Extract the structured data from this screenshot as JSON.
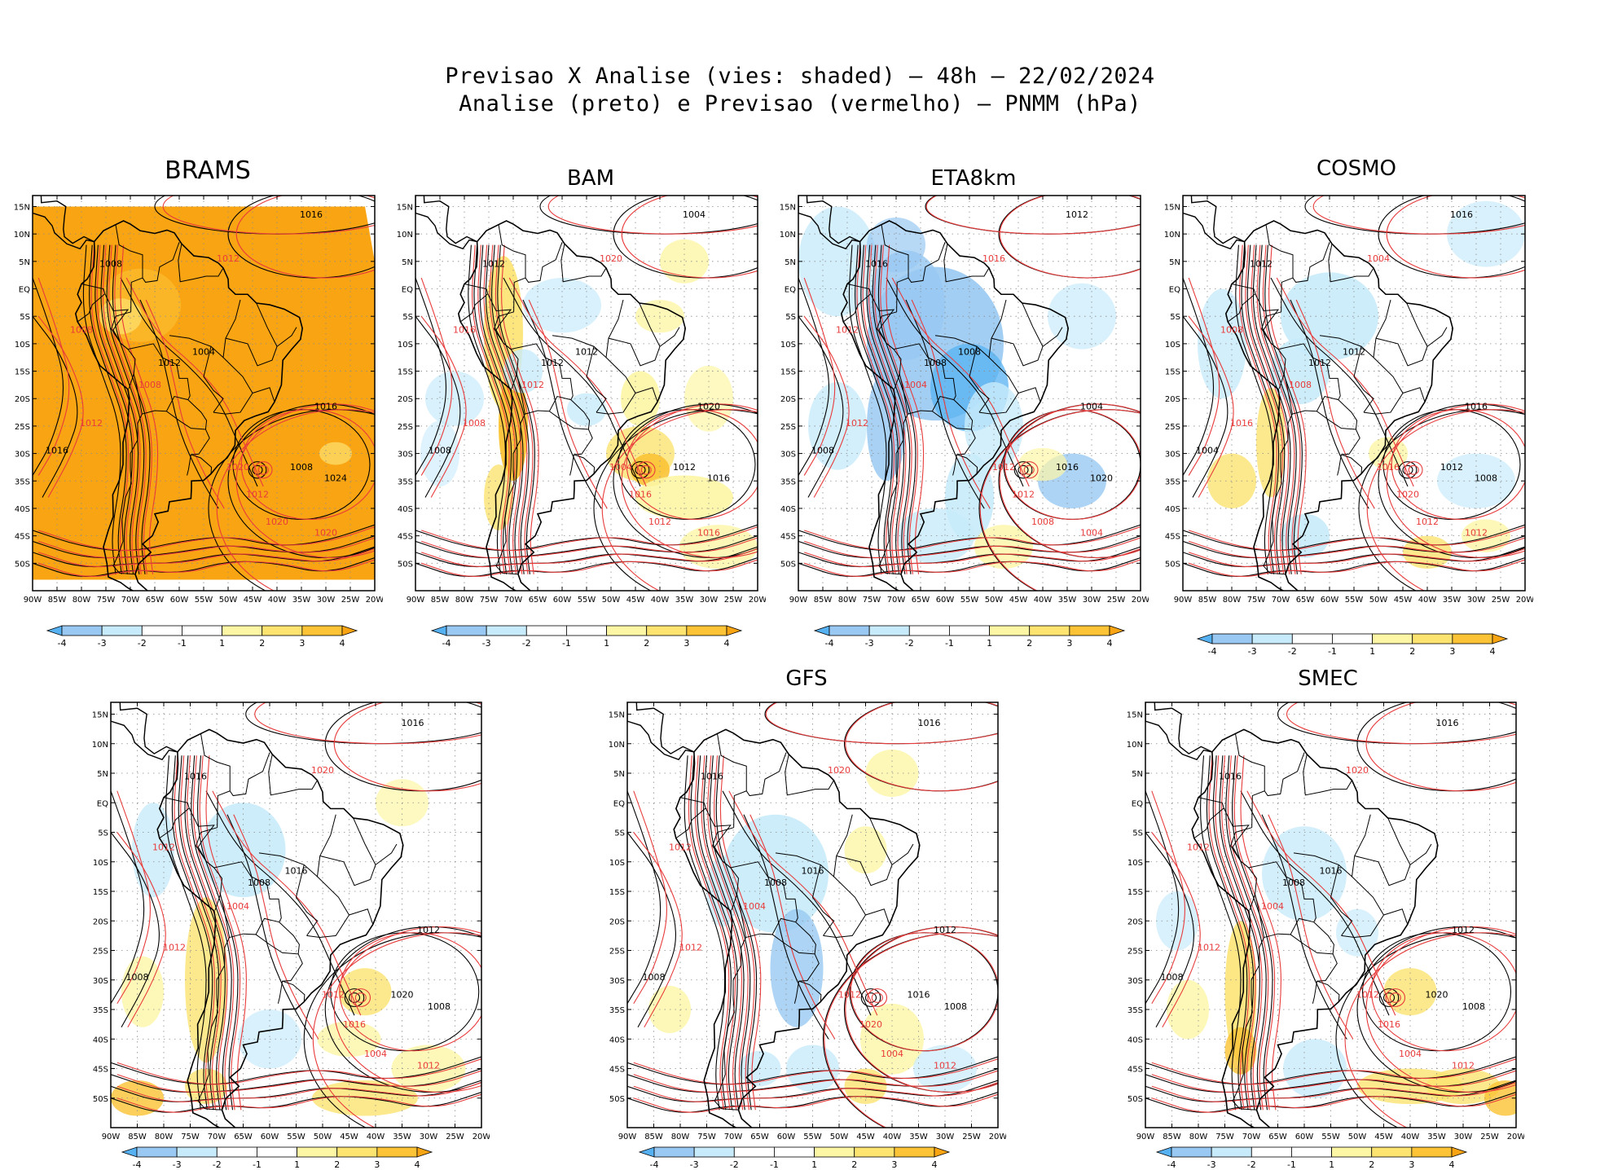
{
  "header": {
    "line1": "Previsao X Analise (vies: shaded) — 48h — 22/02/2024",
    "line2": "Analise (preto) e Previsao (vermelho) — PNMM (hPa)"
  },
  "colors": {
    "neg4": "#56b1f2",
    "neg3": "#99c9f2",
    "neg2": "#c8ebfb",
    "neg1": "#ffffff",
    "pos1": "#fdf6a5",
    "pos2": "#fde370",
    "pos3": "#fbc335",
    "pos4": "#f9a412",
    "analysis": "#000000",
    "forecast": "#e83b3b",
    "grid": "#8c8c8c"
  },
  "lat_labels": [
    "15N",
    "10N",
    "5N",
    "EQ",
    "5S",
    "10S",
    "15S",
    "20S",
    "25S",
    "30S",
    "35S",
    "40S",
    "45S",
    "50S"
  ],
  "lon_labels": [
    "90W",
    "85W",
    "80W",
    "75W",
    "70W",
    "65W",
    "60W",
    "55W",
    "50W",
    "45W",
    "40W",
    "35W",
    "30W",
    "25W",
    "20W"
  ],
  "colorbar_labels": [
    "-4",
    "-3",
    "-2",
    "-1",
    "1",
    "2",
    "3",
    "4"
  ],
  "panels": [
    {
      "id": "brams",
      "title": "BRAMS",
      "bias": "brams",
      "contours": [
        "1008",
        "1008",
        "1012",
        "1012",
        "1004",
        "1008",
        "1016",
        "1020",
        "1008",
        "1012",
        "1016",
        "1020",
        "1024",
        "1012",
        "1016",
        "1020"
      ]
    },
    {
      "id": "bam",
      "title": "BAM",
      "bias": "bam",
      "contours": [
        "1012",
        "1016",
        "1012",
        "1008",
        "1012",
        "1012",
        "1008",
        "1004",
        "1012",
        "1016",
        "1020",
        "1012",
        "1016",
        "1020",
        "1004",
        "1016"
      ]
    },
    {
      "id": "eta8km",
      "title": "ETA8km",
      "bias": "eta",
      "contours": [
        "1016",
        "1012",
        "1008",
        "1012",
        "1008",
        "1004",
        "1008",
        "1012",
        "1016",
        "1012",
        "1004",
        "1008",
        "1020",
        "1016",
        "1012",
        "1004"
      ]
    },
    {
      "id": "cosmo",
      "title": "COSMO",
      "bias": "cosmo",
      "contours": [
        "1012",
        "1008",
        "1012",
        "1016",
        "1012",
        "1008",
        "1004",
        "1016",
        "1012",
        "1020",
        "1016",
        "1012",
        "1008",
        "1004",
        "1016",
        "1012"
      ]
    },
    {
      "id": "panel5",
      "title": "",
      "bias": "p5",
      "contours": [
        "1016",
        "1012",
        "1008",
        "1012",
        "1016",
        "1004",
        "1008",
        "1012",
        "1020",
        "1016",
        "1012",
        "1004",
        "1008",
        "1020",
        "1016",
        "1012"
      ]
    },
    {
      "id": "gfs",
      "title": "GFS",
      "bias": "gfs",
      "contours": [
        "1016",
        "1012",
        "1008",
        "1012",
        "1016",
        "1004",
        "1008",
        "1012",
        "1016",
        "1020",
        "1012",
        "1004",
        "1008",
        "1020",
        "1016",
        "1012"
      ]
    },
    {
      "id": "smec",
      "title": "SMEC",
      "bias": "smec",
      "contours": [
        "1016",
        "1012",
        "1008",
        "1012",
        "1016",
        "1004",
        "1008",
        "1012",
        "1020",
        "1016",
        "1012",
        "1004",
        "1008",
        "1020",
        "1016",
        "1012"
      ]
    }
  ]
}
